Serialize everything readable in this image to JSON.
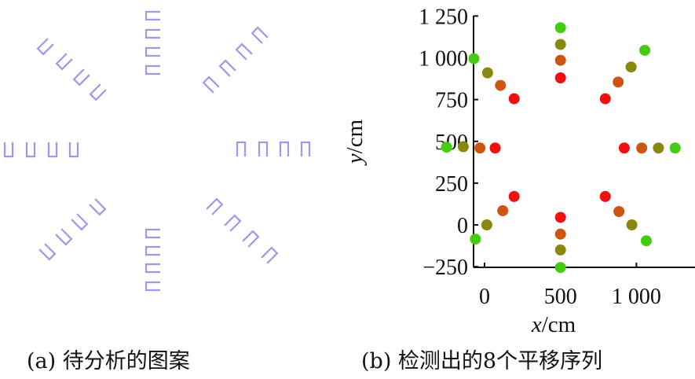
{
  "captions": {
    "a": "(a) 待分析的图案",
    "b": "(b) 检测出的8个平移序列"
  },
  "pattern": {
    "glyph": "bracket-shape",
    "color": "#9a9ae6",
    "arms": [
      {
        "direction": "up",
        "count": 4
      },
      {
        "direction": "down",
        "count": 4
      },
      {
        "direction": "left",
        "count": 4
      },
      {
        "direction": "right",
        "count": 4
      },
      {
        "direction": "up-left",
        "count": 4
      },
      {
        "direction": "up-right",
        "count": 4
      },
      {
        "direction": "down-left",
        "count": 4
      },
      {
        "direction": "down-right",
        "count": 4
      }
    ]
  },
  "chart_data": {
    "type": "scatter",
    "xlabel_var": "x",
    "xlabel_unit": "/cm",
    "ylabel_var": "y",
    "ylabel_unit": "/cm",
    "xticks": [
      {
        "value": 0,
        "label": "0"
      },
      {
        "value": 500,
        "label": "500"
      },
      {
        "value": 1000,
        "label": "1 000"
      }
    ],
    "yticks": [
      {
        "value": -250,
        "label": "−250"
      },
      {
        "value": 0,
        "label": "0"
      },
      {
        "value": 250,
        "label": "250"
      },
      {
        "value": 500,
        "label": "500"
      },
      {
        "value": 750,
        "label": "750"
      },
      {
        "value": 1000,
        "label": "1 000"
      },
      {
        "value": 1250,
        "label": "1 250"
      }
    ],
    "xlim": [
      -260,
      1260
    ],
    "ylim": [
      -250,
      1250
    ],
    "grid": false,
    "point_colors": [
      "#ee1111",
      "#cc5511",
      "#888811",
      "#44cc11"
    ],
    "sequences": [
      {
        "x": [
          500,
          500,
          500,
          500
        ],
        "y": [
          880,
          985,
          1080,
          1180
        ]
      },
      {
        "x": [
          500,
          500,
          500,
          500
        ],
        "y": [
          45,
          -55,
          -150,
          -255
        ]
      },
      {
        "x": [
          70,
          -30,
          -140,
          -250
        ],
        "y": [
          460,
          460,
          468,
          465
        ]
      },
      {
        "x": [
          920,
          1035,
          1145,
          1255
        ],
        "y": [
          460,
          460,
          460,
          460
        ]
      },
      {
        "x": [
          195,
          105,
          20,
          -70
        ],
        "y": [
          755,
          835,
          910,
          995
        ]
      },
      {
        "x": [
          795,
          880,
          965,
          1055
        ],
        "y": [
          755,
          855,
          945,
          1045
        ]
      },
      {
        "x": [
          195,
          120,
          15,
          -60
        ],
        "y": [
          170,
          85,
          0,
          -85
        ]
      },
      {
        "x": [
          795,
          885,
          970,
          1065
        ],
        "y": [
          170,
          80,
          0,
          -95
        ]
      }
    ]
  }
}
